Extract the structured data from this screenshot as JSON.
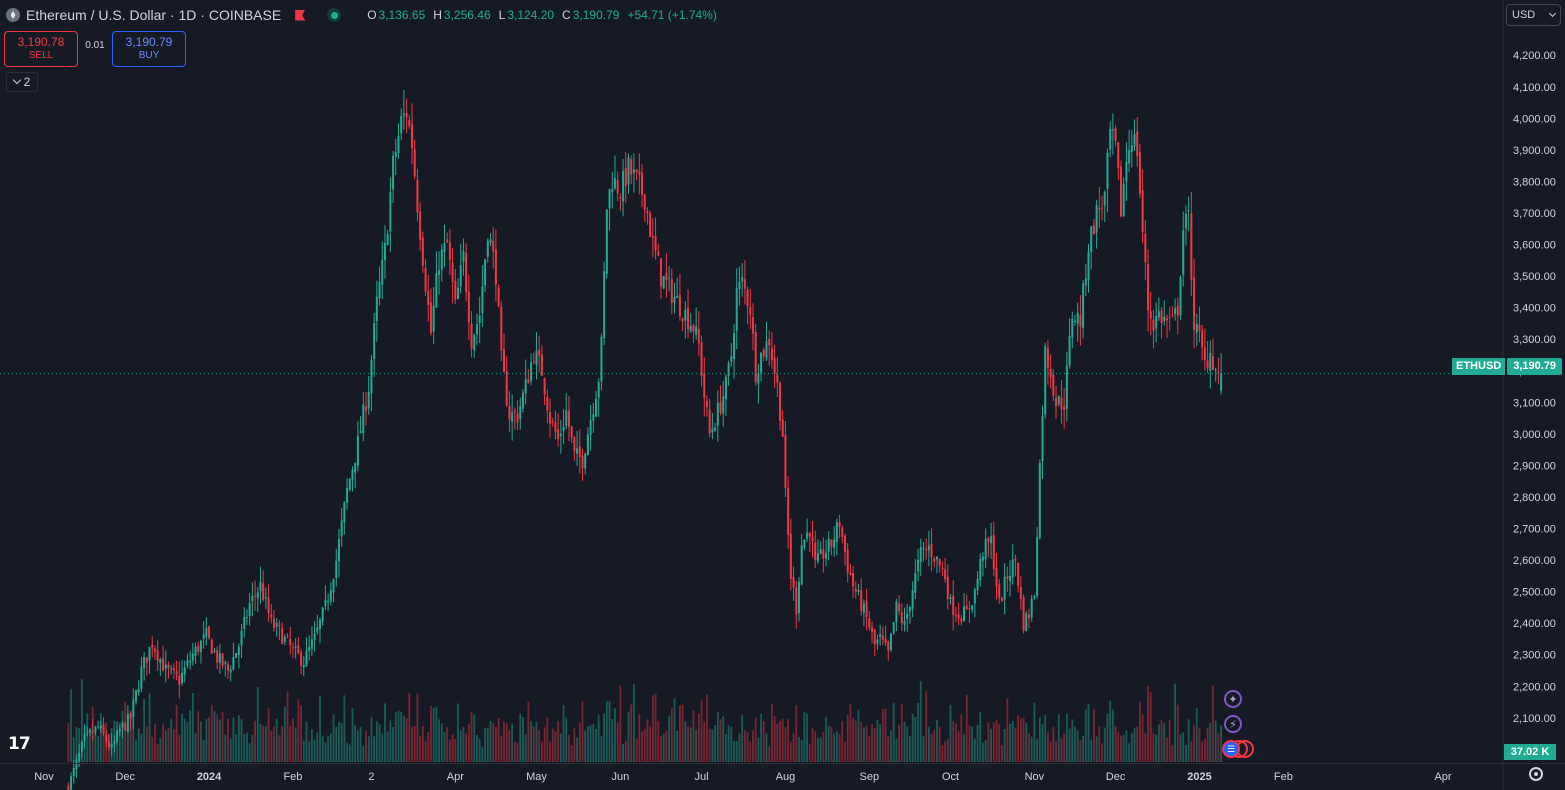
{
  "header": {
    "symbol_title": "Ethereum / U.S. Dollar · 1D · COINBASE",
    "ohlc": {
      "o_label": "O",
      "o": "3,136.65",
      "h_label": "H",
      "h": "3,256.46",
      "l_label": "L",
      "l": "3,124.20",
      "c_label": "C",
      "c": "3,190.79",
      "change": "+54.71 (+1.74%)"
    },
    "up_color": "#22ab94",
    "down_color": "#f23645"
  },
  "trade": {
    "sell_price": "3,190.78",
    "sell_label": "SELL",
    "spread": "0.01",
    "buy_price": "3,190.79",
    "buy_label": "BUY"
  },
  "indicators_collapsed_count": "2",
  "currency_select": "USD",
  "last_price": {
    "symbol": "ETHUSD",
    "value": "3,190.79"
  },
  "volume_last": "37.02 K",
  "logo_text": "17",
  "chart_data": {
    "type": "candlestick",
    "title": "Ethereum / U.S. Dollar · 1D · COINBASE",
    "ylim": [
      1960,
      4280
    ],
    "y_ticks": [
      "4,200.00",
      "4,100.00",
      "4,000.00",
      "3,900.00",
      "3,800.00",
      "3,700.00",
      "3,600.00",
      "3,500.00",
      "3,400.00",
      "3,300.00",
      "3,200.00",
      "3,100.00",
      "3,000.00",
      "2,900.00",
      "2,800.00",
      "2,700.00",
      "2,600.00",
      "2,500.00",
      "2,400.00",
      "2,300.00",
      "2,200.00",
      "2,100.00",
      "2,000.00"
    ],
    "y_tick_values": [
      4200,
      4100,
      4000,
      3900,
      3800,
      3700,
      3600,
      3500,
      3400,
      3300,
      3200,
      3100,
      3000,
      2900,
      2800,
      2700,
      2600,
      2500,
      2400,
      2300,
      2200,
      2100,
      2000
    ],
    "x_ticks": [
      {
        "label": "Nov",
        "day": 0
      },
      {
        "label": "Dec",
        "day": 30
      },
      {
        "label": "2024",
        "day": 61
      },
      {
        "label": "Feb",
        "day": 92
      },
      {
        "label": "2",
        "day": 121
      },
      {
        "label": "Apr",
        "day": 152
      },
      {
        "label": "May",
        "day": 182
      },
      {
        "label": "Jun",
        "day": 213
      },
      {
        "label": "Jul",
        "day": 243
      },
      {
        "label": "Aug",
        "day": 274
      },
      {
        "label": "Sep",
        "day": 305
      },
      {
        "label": "Oct",
        "day": 335
      },
      {
        "label": "Nov",
        "day": 366
      },
      {
        "label": "Dec",
        "day": 396
      },
      {
        "label": "2025",
        "day": 427
      },
      {
        "label": "Feb",
        "day": 458
      },
      {
        "label": "Apr",
        "day": 517
      }
    ],
    "first_candle_day": 9,
    "last_candle_day": 435,
    "close_path": [
      [
        9,
        1880
      ],
      [
        15,
        2030
      ],
      [
        20,
        2070
      ],
      [
        25,
        2000
      ],
      [
        28,
        2060
      ],
      [
        32,
        2100
      ],
      [
        36,
        2250
      ],
      [
        40,
        2340
      ],
      [
        45,
        2250
      ],
      [
        50,
        2220
      ],
      [
        55,
        2300
      ],
      [
        60,
        2360
      ],
      [
        64,
        2290
      ],
      [
        68,
        2250
      ],
      [
        72,
        2330
      ],
      [
        76,
        2460
      ],
      [
        80,
        2520
      ],
      [
        84,
        2400
      ],
      [
        88,
        2360
      ],
      [
        92,
        2310
      ],
      [
        96,
        2280
      ],
      [
        100,
        2350
      ],
      [
        104,
        2450
      ],
      [
        108,
        2600
      ],
      [
        112,
        2820
      ],
      [
        116,
        2970
      ],
      [
        120,
        3150
      ],
      [
        123,
        3410
      ],
      [
        126,
        3580
      ],
      [
        129,
        3850
      ],
      [
        132,
        3990
      ],
      [
        134,
        4020
      ],
      [
        136,
        3920
      ],
      [
        138,
        3730
      ],
      [
        141,
        3480
      ],
      [
        143,
        3320
      ],
      [
        146,
        3550
      ],
      [
        149,
        3600
      ],
      [
        152,
        3400
      ],
      [
        155,
        3560
      ],
      [
        158,
        3300
      ],
      [
        161,
        3380
      ],
      [
        164,
        3650
      ],
      [
        167,
        3510
      ],
      [
        169,
        3230
      ],
      [
        172,
        3060
      ],
      [
        175,
        3060
      ],
      [
        178,
        3150
      ],
      [
        181,
        3260
      ],
      [
        184,
        3200
      ],
      [
        187,
        3050
      ],
      [
        190,
        2980
      ],
      [
        193,
        3070
      ],
      [
        196,
        2930
      ],
      [
        199,
        2920
      ],
      [
        202,
        3050
      ],
      [
        205,
        3180
      ],
      [
        206,
        3280
      ],
      [
        208,
        3720
      ],
      [
        210,
        3810
      ],
      [
        213,
        3770
      ],
      [
        216,
        3840
      ],
      [
        219,
        3800
      ],
      [
        222,
        3750
      ],
      [
        225,
        3600
      ],
      [
        228,
        3500
      ],
      [
        231,
        3460
      ],
      [
        234,
        3420
      ],
      [
        237,
        3380
      ],
      [
        240,
        3340
      ],
      [
        242,
        3280
      ],
      [
        244,
        3120
      ],
      [
        246,
        3000
      ],
      [
        249,
        3070
      ],
      [
        252,
        3150
      ],
      [
        254,
        3250
      ],
      [
        256,
        3450
      ],
      [
        258,
        3480
      ],
      [
        261,
        3400
      ],
      [
        263,
        3200
      ],
      [
        265,
        3250
      ],
      [
        268,
        3300
      ],
      [
        271,
        3150
      ],
      [
        273,
        3000
      ],
      [
        274,
        2800
      ],
      [
        276,
        2550
      ],
      [
        278,
        2450
      ],
      [
        280,
        2650
      ],
      [
        283,
        2700
      ],
      [
        285,
        2580
      ],
      [
        288,
        2620
      ],
      [
        291,
        2650
      ],
      [
        294,
        2720
      ],
      [
        297,
        2580
      ],
      [
        299,
        2520
      ],
      [
        302,
        2460
      ],
      [
        305,
        2390
      ],
      [
        307,
        2330
      ],
      [
        309,
        2350
      ],
      [
        312,
        2300
      ],
      [
        315,
        2450
      ],
      [
        318,
        2390
      ],
      [
        321,
        2510
      ],
      [
        324,
        2620
      ],
      [
        327,
        2640
      ],
      [
        330,
        2600
      ],
      [
        333,
        2550
      ],
      [
        335,
        2460
      ],
      [
        338,
        2430
      ],
      [
        341,
        2430
      ],
      [
        344,
        2500
      ],
      [
        347,
        2630
      ],
      [
        350,
        2660
      ],
      [
        353,
        2460
      ],
      [
        356,
        2550
      ],
      [
        359,
        2600
      ],
      [
        362,
        2400
      ],
      [
        364,
        2430
      ],
      [
        366,
        2500
      ],
      [
        368,
        2900
      ],
      [
        370,
        3260
      ],
      [
        372,
        3200
      ],
      [
        374,
        3100
      ],
      [
        377,
        3100
      ],
      [
        380,
        3380
      ],
      [
        383,
        3360
      ],
      [
        386,
        3600
      ],
      [
        389,
        3700
      ],
      [
        392,
        3750
      ],
      [
        394,
        3950
      ],
      [
        396,
        3900
      ],
      [
        398,
        3710
      ],
      [
        400,
        3870
      ],
      [
        402,
        3950
      ],
      [
        404,
        3900
      ],
      [
        406,
        3640
      ],
      [
        408,
        3400
      ],
      [
        410,
        3350
      ],
      [
        412,
        3380
      ],
      [
        414,
        3360
      ],
      [
        417,
        3350
      ],
      [
        419,
        3400
      ],
      [
        421,
        3650
      ],
      [
        423,
        3680
      ],
      [
        425,
        3350
      ],
      [
        427,
        3300
      ],
      [
        429,
        3220
      ],
      [
        431,
        3260
      ],
      [
        433,
        3200
      ],
      [
        435,
        3190.79
      ]
    ],
    "volume": {
      "last": 37020,
      "max_visible": 95000
    },
    "last_price": 3190.79,
    "grid": false,
    "legend": "top-left"
  }
}
